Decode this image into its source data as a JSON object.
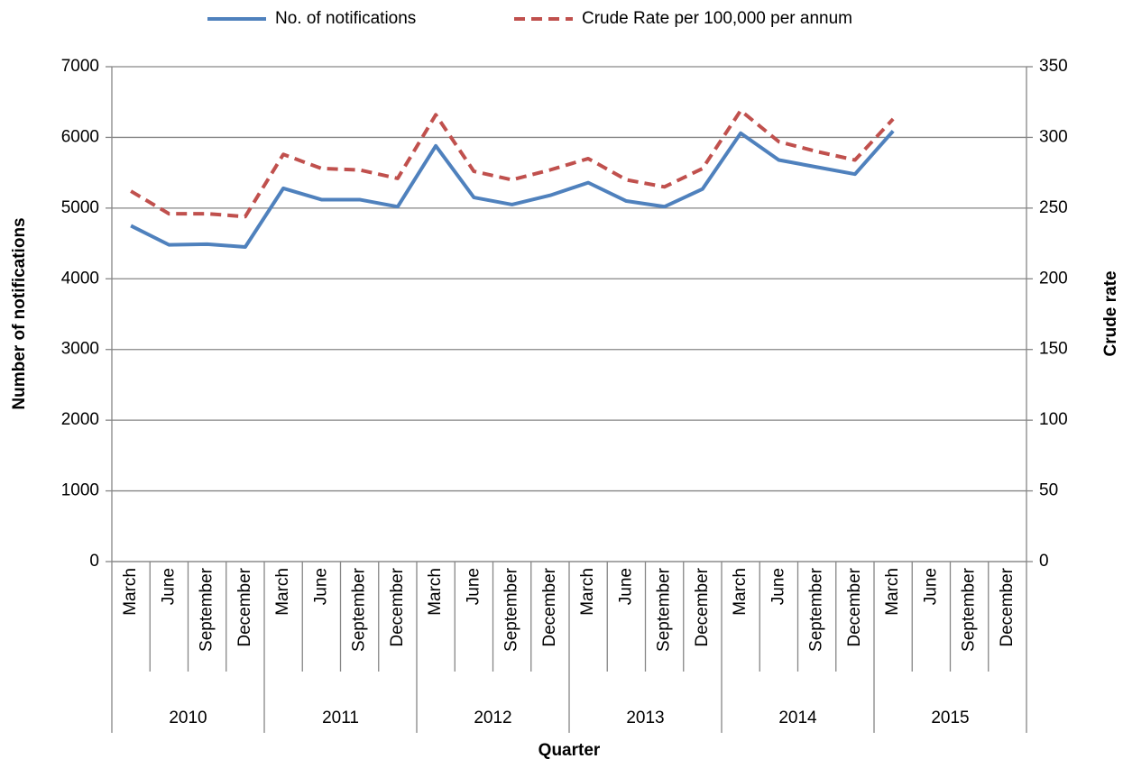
{
  "chart_data": {
    "type": "line",
    "categories": [
      "March",
      "June",
      "September",
      "December",
      "March",
      "June",
      "September",
      "December",
      "March",
      "June",
      "September",
      "December",
      "March",
      "June",
      "September",
      "December",
      "March",
      "June",
      "September",
      "December",
      "March",
      "June",
      "September",
      "December"
    ],
    "x_groups": [
      "2010",
      "2011",
      "2012",
      "2013",
      "2014",
      "2015"
    ],
    "x_label": "Quarter",
    "y_label": "Number of notifications",
    "y2_label": "Crude rate",
    "ylim": [
      0,
      7000
    ],
    "yticks": [
      0,
      1000,
      2000,
      3000,
      4000,
      5000,
      6000,
      7000
    ],
    "y2lim": [
      0,
      350
    ],
    "y2ticks": [
      0,
      50,
      100,
      150,
      200,
      250,
      300,
      350
    ],
    "grid": true,
    "legend": "top",
    "series": [
      {
        "name": "No. of notifications",
        "color": "#4f81bd",
        "dashed": false,
        "values": [
          4750,
          4480,
          4490,
          4450,
          5280,
          5120,
          5120,
          5020,
          5880,
          5150,
          5050,
          5180,
          5360,
          5100,
          5020,
          5270,
          6060,
          5680,
          5580,
          5480,
          6090,
          null,
          null,
          null
        ]
      },
      {
        "name": "Crude Rate per 100,000 per annum",
        "color": "#c0504d",
        "dashed": true,
        "axis": "y2",
        "values": [
          262,
          246,
          246,
          244,
          288,
          278,
          277,
          271,
          316,
          276,
          270,
          277,
          285,
          270,
          265,
          278,
          319,
          297,
          290,
          284,
          313,
          null,
          null,
          null
        ]
      }
    ]
  }
}
